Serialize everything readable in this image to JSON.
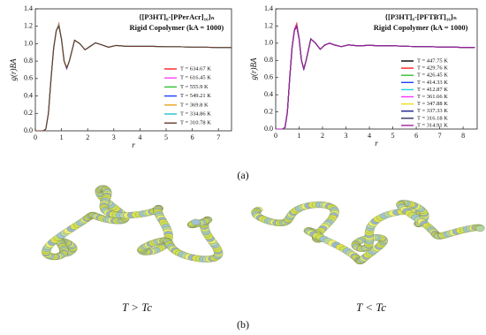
{
  "chart_data": [
    {
      "type": "line",
      "title": "{[P3HT]₈-[PPerAcr]₁₆}ₙ",
      "subtitle": "Rigid Copolymer (kA = 1000)",
      "x_label": "r",
      "y_label": "g(r)BA",
      "xlim": [
        0,
        7.5
      ],
      "xticks": [
        0,
        1,
        2,
        3,
        4,
        5,
        6,
        7
      ],
      "ylim": [
        0,
        1.4
      ],
      "yticks": [
        {
          "value": 0,
          "label": "0.0"
        },
        {
          "value": 0.2,
          "label": "0.2"
        },
        {
          "value": 0.4,
          "label": "0.4"
        },
        {
          "value": 0.6,
          "label": "0.6"
        },
        {
          "value": 0.8,
          "label": "0.8"
        },
        {
          "value": 1,
          "label": "1.0"
        },
        {
          "value": 1.2,
          "label": "1.2"
        },
        {
          "value": 1.4,
          "label": "1.4"
        }
      ],
      "legend": "lower right",
      "x": [
        0,
        0.3,
        0.4,
        0.5,
        0.6,
        0.7,
        0.8,
        0.9,
        1.0,
        1.1,
        1.2,
        1.3,
        1.5,
        1.7,
        1.9,
        2.1,
        2.3,
        2.5,
        2.8,
        3.1,
        3.5,
        4,
        4.5,
        5,
        5.5,
        6,
        6.5,
        7,
        7.5
      ],
      "series": [
        {
          "name": "T = 634.67 K",
          "color": "#ff2020",
          "values": [
            0,
            0,
            0.02,
            0.2,
            0.6,
            0.95,
            1.15,
            1.23,
            1.05,
            0.8,
            0.72,
            0.8,
            1.04,
            1.0,
            0.93,
            0.97,
            1.01,
            0.99,
            0.96,
            0.98,
            0.97,
            0.97,
            0.97,
            0.965,
            0.965,
            0.96,
            0.96,
            0.955,
            0.955
          ]
        },
        {
          "name": "T = 616.45 K",
          "color": "#ff40ff",
          "values": [
            0,
            0,
            0.02,
            0.2,
            0.6,
            0.95,
            1.15,
            1.22,
            1.05,
            0.8,
            0.71,
            0.8,
            1.04,
            1.0,
            0.93,
            0.97,
            1.01,
            0.99,
            0.96,
            0.98,
            0.97,
            0.97,
            0.97,
            0.965,
            0.965,
            0.96,
            0.96,
            0.955,
            0.955
          ]
        },
        {
          "name": "T = 555.9 K",
          "color": "#30c030",
          "values": [
            0,
            0,
            0.02,
            0.2,
            0.6,
            0.95,
            1.15,
            1.22,
            1.05,
            0.8,
            0.72,
            0.8,
            1.04,
            1.0,
            0.93,
            0.97,
            1.01,
            0.99,
            0.96,
            0.98,
            0.97,
            0.97,
            0.97,
            0.965,
            0.965,
            0.96,
            0.96,
            0.955,
            0.955
          ]
        },
        {
          "name": "T = 549.21 K",
          "color": "#2040ff",
          "values": [
            0,
            0,
            0.02,
            0.2,
            0.6,
            0.95,
            1.15,
            1.21,
            1.05,
            0.8,
            0.72,
            0.8,
            1.04,
            1.0,
            0.93,
            0.97,
            1.01,
            0.99,
            0.96,
            0.98,
            0.97,
            0.97,
            0.97,
            0.965,
            0.965,
            0.96,
            0.96,
            0.955,
            0.955
          ]
        },
        {
          "name": "T = 369.8 K",
          "color": "#e8a020",
          "values": [
            0,
            0,
            0.02,
            0.2,
            0.6,
            0.95,
            1.15,
            1.22,
            1.05,
            0.8,
            0.73,
            0.8,
            1.04,
            1.0,
            0.93,
            0.97,
            1.01,
            0.99,
            0.96,
            0.98,
            0.97,
            0.97,
            0.97,
            0.965,
            0.965,
            0.96,
            0.96,
            0.955,
            0.955
          ]
        },
        {
          "name": "T = 334.86 K",
          "color": "#20c0d0",
          "values": [
            0,
            0,
            0.02,
            0.2,
            0.6,
            0.95,
            1.15,
            1.21,
            1.05,
            0.8,
            0.72,
            0.8,
            1.04,
            1.0,
            0.93,
            0.97,
            1.01,
            0.99,
            0.96,
            0.98,
            0.97,
            0.97,
            0.97,
            0.965,
            0.965,
            0.96,
            0.96,
            0.955,
            0.955
          ]
        },
        {
          "name": "T = 310.78 K",
          "color": "#6b3a2a",
          "values": [
            0,
            0,
            0.02,
            0.2,
            0.6,
            0.95,
            1.15,
            1.2,
            1.05,
            0.8,
            0.72,
            0.8,
            1.04,
            1.0,
            0.93,
            0.97,
            1.01,
            0.99,
            0.96,
            0.98,
            0.97,
            0.97,
            0.97,
            0.965,
            0.965,
            0.96,
            0.96,
            0.955,
            0.955
          ]
        }
      ]
    },
    {
      "type": "line",
      "title": "{[P3HT]₈-[PFTBT]₁₆}ₙ",
      "subtitle": "Rigid Copolymer (kA = 1000)",
      "x_label": "r",
      "y_label": "g(r)BA",
      "xlim": [
        0,
        8.6
      ],
      "xticks": [
        0,
        1,
        2,
        3,
        4,
        5,
        6,
        7,
        8
      ],
      "ylim": [
        0,
        1.4
      ],
      "yticks": [
        {
          "value": 0,
          "label": "0.0"
        },
        {
          "value": 0.2,
          "label": "0.2"
        },
        {
          "value": 0.4,
          "label": "0.4"
        },
        {
          "value": 0.6,
          "label": "0.6"
        },
        {
          "value": 0.8,
          "label": "0.8"
        },
        {
          "value": 1,
          "label": "1.0"
        },
        {
          "value": 1.2,
          "label": "1.2"
        },
        {
          "value": 1.4,
          "label": "1.4"
        }
      ],
      "legend": "lower right",
      "x": [
        0,
        0.3,
        0.4,
        0.5,
        0.6,
        0.7,
        0.8,
        0.9,
        1.0,
        1.1,
        1.2,
        1.3,
        1.5,
        1.7,
        1.9,
        2.1,
        2.3,
        2.5,
        2.8,
        3.1,
        3.5,
        4,
        4.5,
        5,
        5.5,
        6,
        6.5,
        7,
        7.5,
        8,
        8.5
      ],
      "series": [
        {
          "name": "T = 447.75 K",
          "color": "#000000",
          "values": [
            0,
            0,
            0.02,
            0.2,
            0.6,
            0.95,
            1.15,
            1.2,
            1.05,
            0.8,
            0.7,
            0.8,
            1.05,
            1.0,
            0.93,
            0.98,
            1.0,
            0.98,
            0.96,
            0.98,
            0.97,
            0.975,
            0.97,
            0.97,
            0.965,
            0.96,
            0.96,
            0.955,
            0.955,
            0.95,
            0.95
          ]
        },
        {
          "name": "T = 429.76 K",
          "color": "#ff2020",
          "values": [
            0,
            0,
            0.02,
            0.2,
            0.6,
            0.95,
            1.16,
            1.23,
            1.05,
            0.8,
            0.7,
            0.8,
            1.05,
            1.0,
            0.93,
            0.98,
            1.0,
            0.98,
            0.96,
            0.98,
            0.97,
            0.975,
            0.97,
            0.97,
            0.965,
            0.96,
            0.96,
            0.955,
            0.955,
            0.95,
            0.95
          ]
        },
        {
          "name": "T = 426.45 K",
          "color": "#30c030",
          "values": [
            0,
            0,
            0.02,
            0.2,
            0.6,
            0.95,
            1.15,
            1.21,
            1.05,
            0.8,
            0.7,
            0.8,
            1.05,
            1.0,
            0.93,
            0.98,
            1.0,
            0.98,
            0.96,
            0.98,
            0.97,
            0.975,
            0.97,
            0.97,
            0.965,
            0.96,
            0.96,
            0.955,
            0.955,
            0.95,
            0.95
          ]
        },
        {
          "name": "T = 414.33 K",
          "color": "#2040ff",
          "values": [
            0,
            0,
            0.02,
            0.2,
            0.6,
            0.95,
            1.15,
            1.2,
            1.05,
            0.8,
            0.69,
            0.8,
            1.05,
            1.0,
            0.93,
            0.98,
            1.0,
            0.98,
            0.96,
            0.98,
            0.97,
            0.975,
            0.97,
            0.97,
            0.965,
            0.96,
            0.96,
            0.955,
            0.955,
            0.95,
            0.95
          ]
        },
        {
          "name": "T = 412.87 K",
          "color": "#20d0e0",
          "values": [
            0,
            0,
            0.02,
            0.2,
            0.6,
            0.95,
            1.15,
            1.2,
            1.05,
            0.8,
            0.7,
            0.8,
            1.05,
            1.0,
            0.93,
            0.98,
            1.0,
            0.98,
            0.96,
            0.98,
            0.97,
            0.975,
            0.97,
            0.97,
            0.965,
            0.96,
            0.96,
            0.955,
            0.955,
            0.95,
            0.95
          ]
        },
        {
          "name": "T = 361.66 K",
          "color": "#ff30ff",
          "values": [
            0,
            0,
            0.02,
            0.2,
            0.6,
            0.95,
            1.15,
            1.21,
            1.05,
            0.8,
            0.7,
            0.8,
            1.05,
            1.0,
            0.93,
            0.98,
            1.0,
            0.98,
            0.96,
            0.98,
            0.97,
            0.975,
            0.97,
            0.97,
            0.965,
            0.96,
            0.96,
            0.955,
            0.955,
            0.95,
            0.95
          ]
        },
        {
          "name": "T = 347.88 K",
          "color": "#e8e020",
          "values": [
            0,
            0,
            0.02,
            0.2,
            0.6,
            0.95,
            1.15,
            1.2,
            1.05,
            0.8,
            0.71,
            0.8,
            1.05,
            1.0,
            0.93,
            0.98,
            1.0,
            0.98,
            0.96,
            0.98,
            0.97,
            0.975,
            0.97,
            0.97,
            0.965,
            0.96,
            0.96,
            0.955,
            0.955,
            0.95,
            0.95
          ]
        },
        {
          "name": "T = 337.33 K",
          "color": "#20208a",
          "values": [
            0,
            0,
            0.02,
            0.2,
            0.6,
            0.95,
            1.15,
            1.19,
            1.05,
            0.8,
            0.7,
            0.8,
            1.05,
            1.0,
            0.93,
            0.98,
            1.0,
            0.98,
            0.96,
            0.98,
            0.97,
            0.975,
            0.97,
            0.97,
            0.965,
            0.96,
            0.96,
            0.955,
            0.955,
            0.95,
            0.95
          ]
        },
        {
          "name": "T = 316.18 K",
          "color": "#303060",
          "values": [
            0,
            0,
            0.02,
            0.2,
            0.6,
            0.95,
            1.15,
            1.2,
            1.05,
            0.8,
            0.7,
            0.8,
            1.05,
            1.0,
            0.93,
            0.98,
            1.0,
            0.98,
            0.96,
            0.98,
            0.97,
            0.975,
            0.97,
            0.97,
            0.965,
            0.96,
            0.96,
            0.955,
            0.955,
            0.95,
            0.95
          ]
        },
        {
          "name": "T = 314.91 K",
          "color": "#a020a0",
          "values": [
            0,
            0,
            0.02,
            0.2,
            0.6,
            0.95,
            1.15,
            1.2,
            1.05,
            0.8,
            0.7,
            0.8,
            1.05,
            1.0,
            0.93,
            0.98,
            1.0,
            0.98,
            0.96,
            0.98,
            0.97,
            0.975,
            0.97,
            0.97,
            0.965,
            0.96,
            0.96,
            0.955,
            0.955,
            0.95,
            0.95
          ]
        }
      ]
    }
  ],
  "panel_labels": [
    "(a)",
    "(b)"
  ],
  "snapshot_labels": [
    "T > Tc",
    "T < Tc"
  ]
}
